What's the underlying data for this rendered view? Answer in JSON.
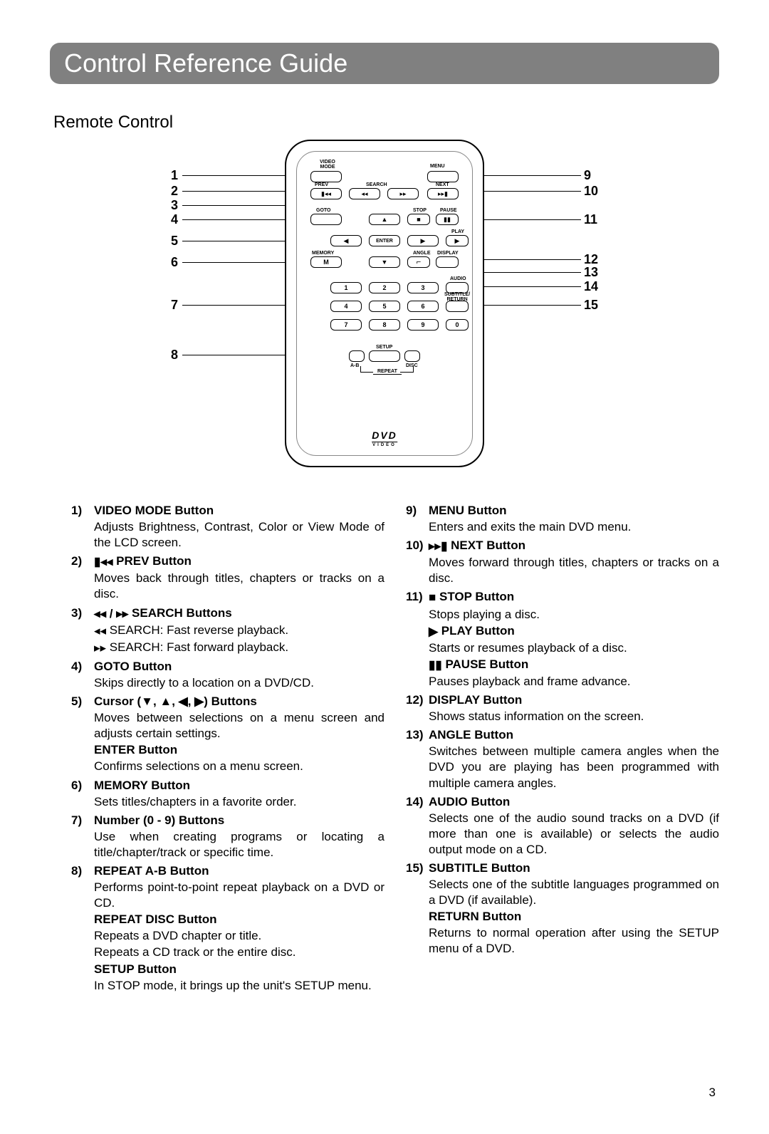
{
  "page": {
    "title": "Control Reference Guide",
    "subtitle": "Remote Control",
    "page_number": "3"
  },
  "colors": {
    "title_bar_bg": "#808080",
    "title_text": "#ffffff",
    "body_text": "#000000"
  },
  "remote": {
    "logo": "DVD",
    "logo_sub": "VIDEO",
    "labels": {
      "video_mode": "VIDEO\nMODE",
      "menu": "MENU",
      "prev": "PREV",
      "search": "SEARCH",
      "next": "NEXT",
      "goto": "GOTO",
      "stop": "STOP",
      "pause": "PAUSE",
      "enter": "ENTER",
      "play": "PLAY",
      "memory": "MEMORY",
      "angle": "ANGLE",
      "display": "DISPLAY",
      "audio": "AUDIO",
      "subtitle": "SUBTITLE/\nRETURN",
      "setup": "SETUP",
      "ab": "A-B",
      "disc": "DISC",
      "repeat": "REPEAT"
    },
    "callouts_left": [
      "1",
      "2",
      "3",
      "4",
      "5",
      "6",
      "7",
      "8"
    ],
    "callouts_right": [
      "9",
      "10",
      "11",
      "12",
      "13",
      "14",
      "15"
    ]
  },
  "left_col": [
    {
      "n": "1)",
      "title": "VIDEO MODE Button",
      "body": [
        "Adjusts Brightness, Contrast, Color or View Mode of the LCD screen."
      ]
    },
    {
      "n": "2)",
      "title_icon": "prev",
      "title": "PREV Button",
      "body": [
        "Moves back through titles, chapters or tracks on a disc."
      ]
    },
    {
      "n": "3)",
      "title_icon": "rw_ff",
      "title": "SEARCH Buttons",
      "body": [
        {
          "icon": "rw",
          "text": "SEARCH: Fast reverse playback."
        },
        {
          "icon": "ff",
          "text": "SEARCH: Fast forward playback."
        }
      ]
    },
    {
      "n": "4)",
      "title": "GOTO Button",
      "body": [
        "Skips directly to a location on a DVD/CD."
      ]
    },
    {
      "n": "5)",
      "title_icon": "cursor",
      "title_pre": "Cursor (",
      "title_post": ") Buttons",
      "body": [
        "Moves between selections on a menu screen and adjusts certain settings.",
        {
          "bold": "ENTER Button"
        },
        "Confirms selections on a menu screen."
      ]
    },
    {
      "n": "6)",
      "title": "MEMORY Button",
      "body": [
        "Sets titles/chapters in a favorite order."
      ]
    },
    {
      "n": "7)",
      "title": "Number (0 - 9) Buttons",
      "body": [
        "Use when creating programs or locating a title/chapter/track or specific time."
      ]
    },
    {
      "n": "8)",
      "title": "REPEAT A-B Button",
      "body": [
        "Performs point-to-point repeat playback on a DVD or CD.",
        {
          "bold": "REPEAT DISC Button"
        },
        "Repeats a DVD chapter or title.",
        "Repeats a CD track or the entire disc.",
        {
          "bold": "SETUP  Button"
        },
        "In STOP mode, it brings up the unit's SETUP menu."
      ]
    }
  ],
  "right_col": [
    {
      "n": "9)",
      "title": "MENU Button",
      "body": [
        "Enters and exits the main DVD menu."
      ]
    },
    {
      "n": "10)",
      "title_icon": "next",
      "title": "NEXT Button",
      "body": [
        "Moves forward through titles, chapters or tracks on a disc."
      ]
    },
    {
      "n": "11)",
      "title_icon": "stop",
      "title": "STOP Button",
      "body": [
        "Stops playing a disc.",
        {
          "bold_icon": "play",
          "bold": "PLAY Button"
        },
        "Starts or resumes playback of a disc.",
        {
          "bold_icon": "pause",
          "bold": "PAUSE Button"
        },
        "Pauses playback and frame advance."
      ]
    },
    {
      "n": "12)",
      "title": "DISPLAY Button",
      "body": [
        "Shows status information on the screen."
      ]
    },
    {
      "n": "13)",
      "title": "ANGLE Button",
      "body": [
        "Switches between multiple camera angles when the DVD you are playing has been programmed with multiple camera angles."
      ]
    },
    {
      "n": "14)",
      "title": "AUDIO Button",
      "body": [
        "Selects one of the audio sound tracks on a DVD (if more than one is available) or selects the audio output mode on a CD."
      ]
    },
    {
      "n": "15)",
      "title": "SUBTITLE Button",
      "body": [
        "Selects one of the subtitle languages programmed on a DVD (if available).",
        {
          "bold": "RETURN Button"
        },
        "Returns to normal operation after using the SETUP menu of a DVD."
      ]
    }
  ]
}
